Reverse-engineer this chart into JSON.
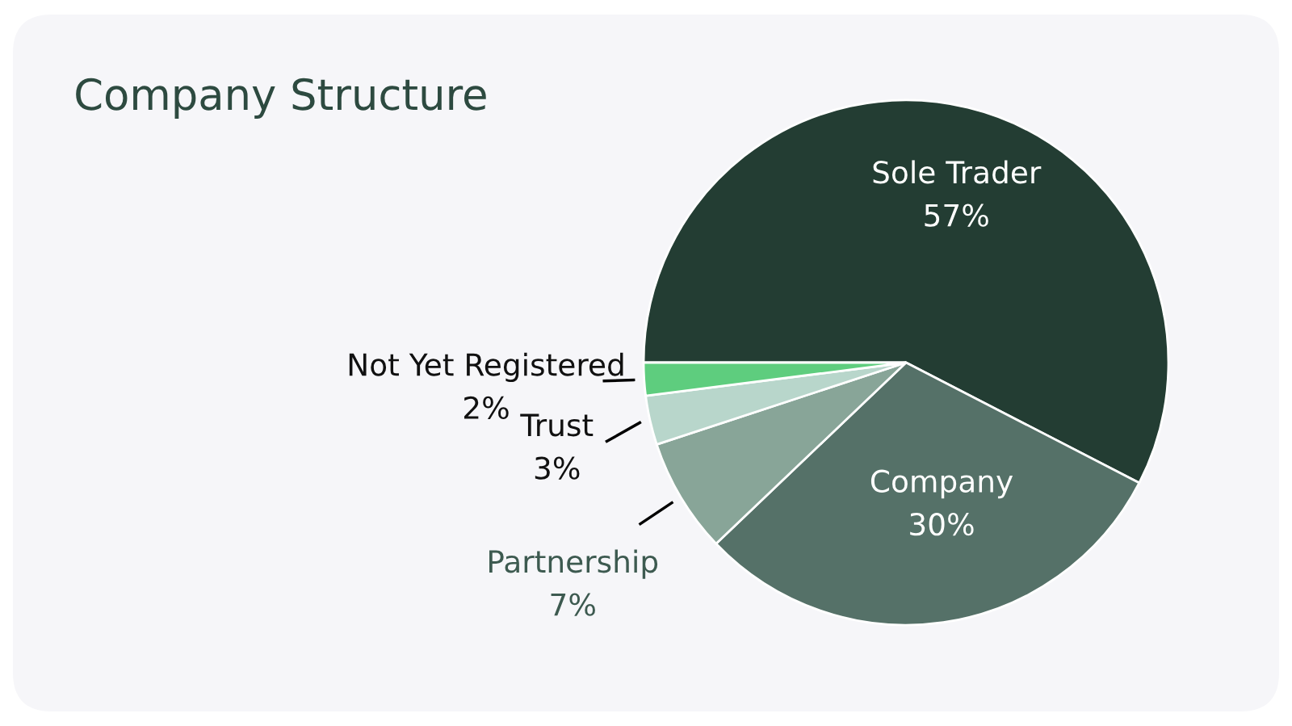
{
  "chart_data": {
    "type": "pie",
    "title": "Company Structure",
    "categories": [
      "Sole Trader",
      "Company",
      "Partnership",
      "Trust",
      "Not Yet Registered"
    ],
    "values": [
      57,
      30,
      7,
      3,
      2
    ],
    "colors": [
      "#233d33",
      "#557168",
      "#88a598",
      "#b8d6cb",
      "#5ecd7e"
    ],
    "value_labels": [
      "57%",
      "30%",
      "7%",
      "3%",
      "2%"
    ],
    "legend": false
  }
}
